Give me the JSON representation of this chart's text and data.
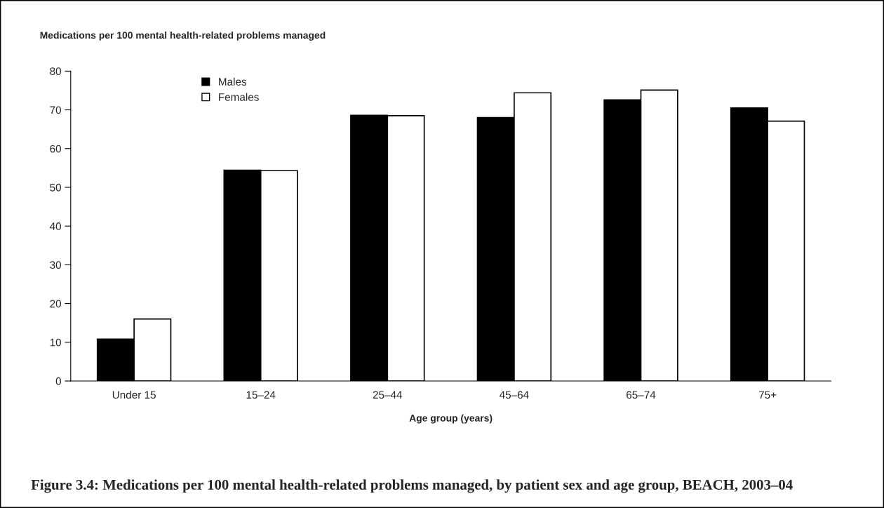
{
  "chart_data": {
    "type": "bar",
    "title": "Figure 3.4: Medications per 100 mental health-related problems managed, by patient sex and age group, BEACH, 2003–04",
    "ylabel": "Medications per 100 mental health-related problems managed",
    "xlabel": "Age group (years)",
    "categories": [
      "Under 15",
      "15–24",
      "25–44",
      "45–64",
      "65–74",
      "75+"
    ],
    "series": [
      {
        "name": "Males",
        "color": "#000000",
        "values": [
          10.8,
          54.4,
          68.6,
          68.0,
          72.6,
          70.5
        ]
      },
      {
        "name": "Females",
        "color": "#ffffff",
        "values": [
          16.0,
          54.3,
          68.5,
          74.4,
          75.1,
          67.1
        ]
      }
    ],
    "ylim": [
      0,
      80
    ],
    "yticks": [
      0,
      10,
      20,
      30,
      40,
      50,
      60,
      70,
      80
    ],
    "grid": false,
    "legend": "top left"
  }
}
